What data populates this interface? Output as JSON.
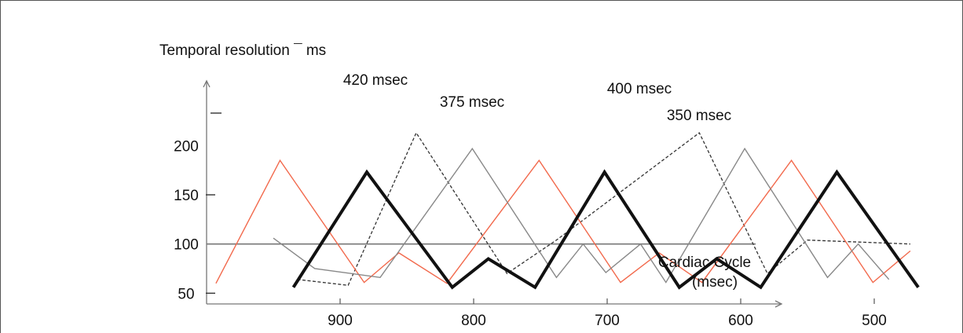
{
  "chart_data": {
    "type": "line",
    "ylabel": "Temporal resolution ¯ ms",
    "xlabel": [
      "Cardiac Cycle",
      "(msec)"
    ],
    "x_ticks": [
      "900",
      "800",
      "700",
      "600",
      "500"
    ],
    "y_ticks": [
      "200",
      "150",
      "100",
      "50"
    ],
    "xlim": [
      1000,
      420
    ],
    "ylim": [
      0,
      225
    ],
    "reference_line": 100,
    "series": [
      {
        "name": "420 msec",
        "color": "#333333",
        "style": "dashed",
        "points": [
          [
            932,
            64
          ],
          [
            894,
            58
          ],
          [
            843,
            213
          ],
          [
            775,
            70
          ],
          [
            738,
            104
          ],
          [
            631,
            213
          ],
          [
            580,
            70
          ],
          [
            550,
            104
          ],
          [
            473,
            100
          ]
        ]
      },
      {
        "name": "375 msec",
        "color": "#f2694c",
        "style": "solid",
        "points": [
          [
            993,
            60
          ],
          [
            945,
            185
          ],
          [
            882,
            61
          ],
          [
            856,
            91
          ],
          [
            820,
            60
          ],
          [
            751,
            185
          ],
          [
            690,
            61
          ],
          [
            661,
            91
          ],
          [
            629,
            61
          ],
          [
            562,
            185
          ],
          [
            501,
            61
          ],
          [
            473,
            93
          ]
        ]
      },
      {
        "name": "400 msec",
        "color": "#888888",
        "style": "solid",
        "points": [
          [
            950,
            106
          ],
          [
            919,
            75
          ],
          [
            870,
            66
          ],
          [
            801,
            197
          ],
          [
            738,
            66
          ],
          [
            718,
            100
          ],
          [
            701,
            71
          ],
          [
            675,
            100
          ],
          [
            656,
            61
          ],
          [
            597,
            197
          ],
          [
            535,
            66
          ],
          [
            512,
            100
          ],
          [
            489,
            64
          ]
        ]
      },
      {
        "name": "350 msec",
        "color": "#111111",
        "style": "bold",
        "points": [
          [
            935,
            56
          ],
          [
            880,
            173
          ],
          [
            816,
            56
          ],
          [
            789,
            85
          ],
          [
            754,
            56
          ],
          [
            702,
            173
          ],
          [
            646,
            56
          ],
          [
            618,
            85
          ],
          [
            585,
            56
          ],
          [
            528,
            173
          ],
          [
            467,
            56
          ]
        ]
      }
    ]
  }
}
